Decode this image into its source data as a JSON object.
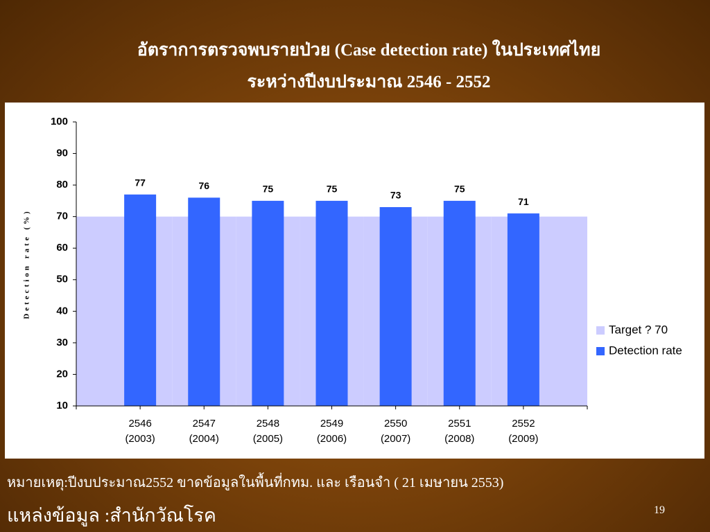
{
  "title_lines": [
    "อัตราการตรวจพบรายป่วย (Case detection rate) ในประเทศไทย",
    "ระหว่างปีงบประมาณ 2546 - 2552"
  ],
  "chart_data": {
    "type": "bar",
    "categories": [
      [
        "2546",
        "(2003)"
      ],
      [
        "2547",
        "(2004)"
      ],
      [
        "2548",
        "(2005)"
      ],
      [
        "2549",
        "(2006)"
      ],
      [
        "2550",
        "(2007)"
      ],
      [
        "2551",
        "(2008)"
      ],
      [
        "2552",
        "(2009)"
      ]
    ],
    "series": [
      {
        "name": "Target ? 70",
        "color": "#ccccff",
        "values": [
          70,
          70,
          70,
          70,
          70,
          70,
          70
        ]
      },
      {
        "name": "Detection rate",
        "color": "#3366ff",
        "values": [
          77,
          76,
          75,
          75,
          73,
          75,
          71
        ]
      }
    ],
    "y_label": "Detection rate (%)",
    "ylim": [
      10,
      100
    ],
    "yticks": [
      10,
      20,
      30,
      40,
      50,
      60,
      70,
      80,
      90,
      100
    ],
    "legend": "right"
  },
  "footnote": "หมายเหตุ:ปีงบประมาณ2552  ขาดข้อมูลในพื้นที่กทม. และ เรือนจำ ( 21 เมษายน 2553)",
  "source": "แหล่งข้อมูล :สำนักวัณโรค",
  "page_number": "19"
}
